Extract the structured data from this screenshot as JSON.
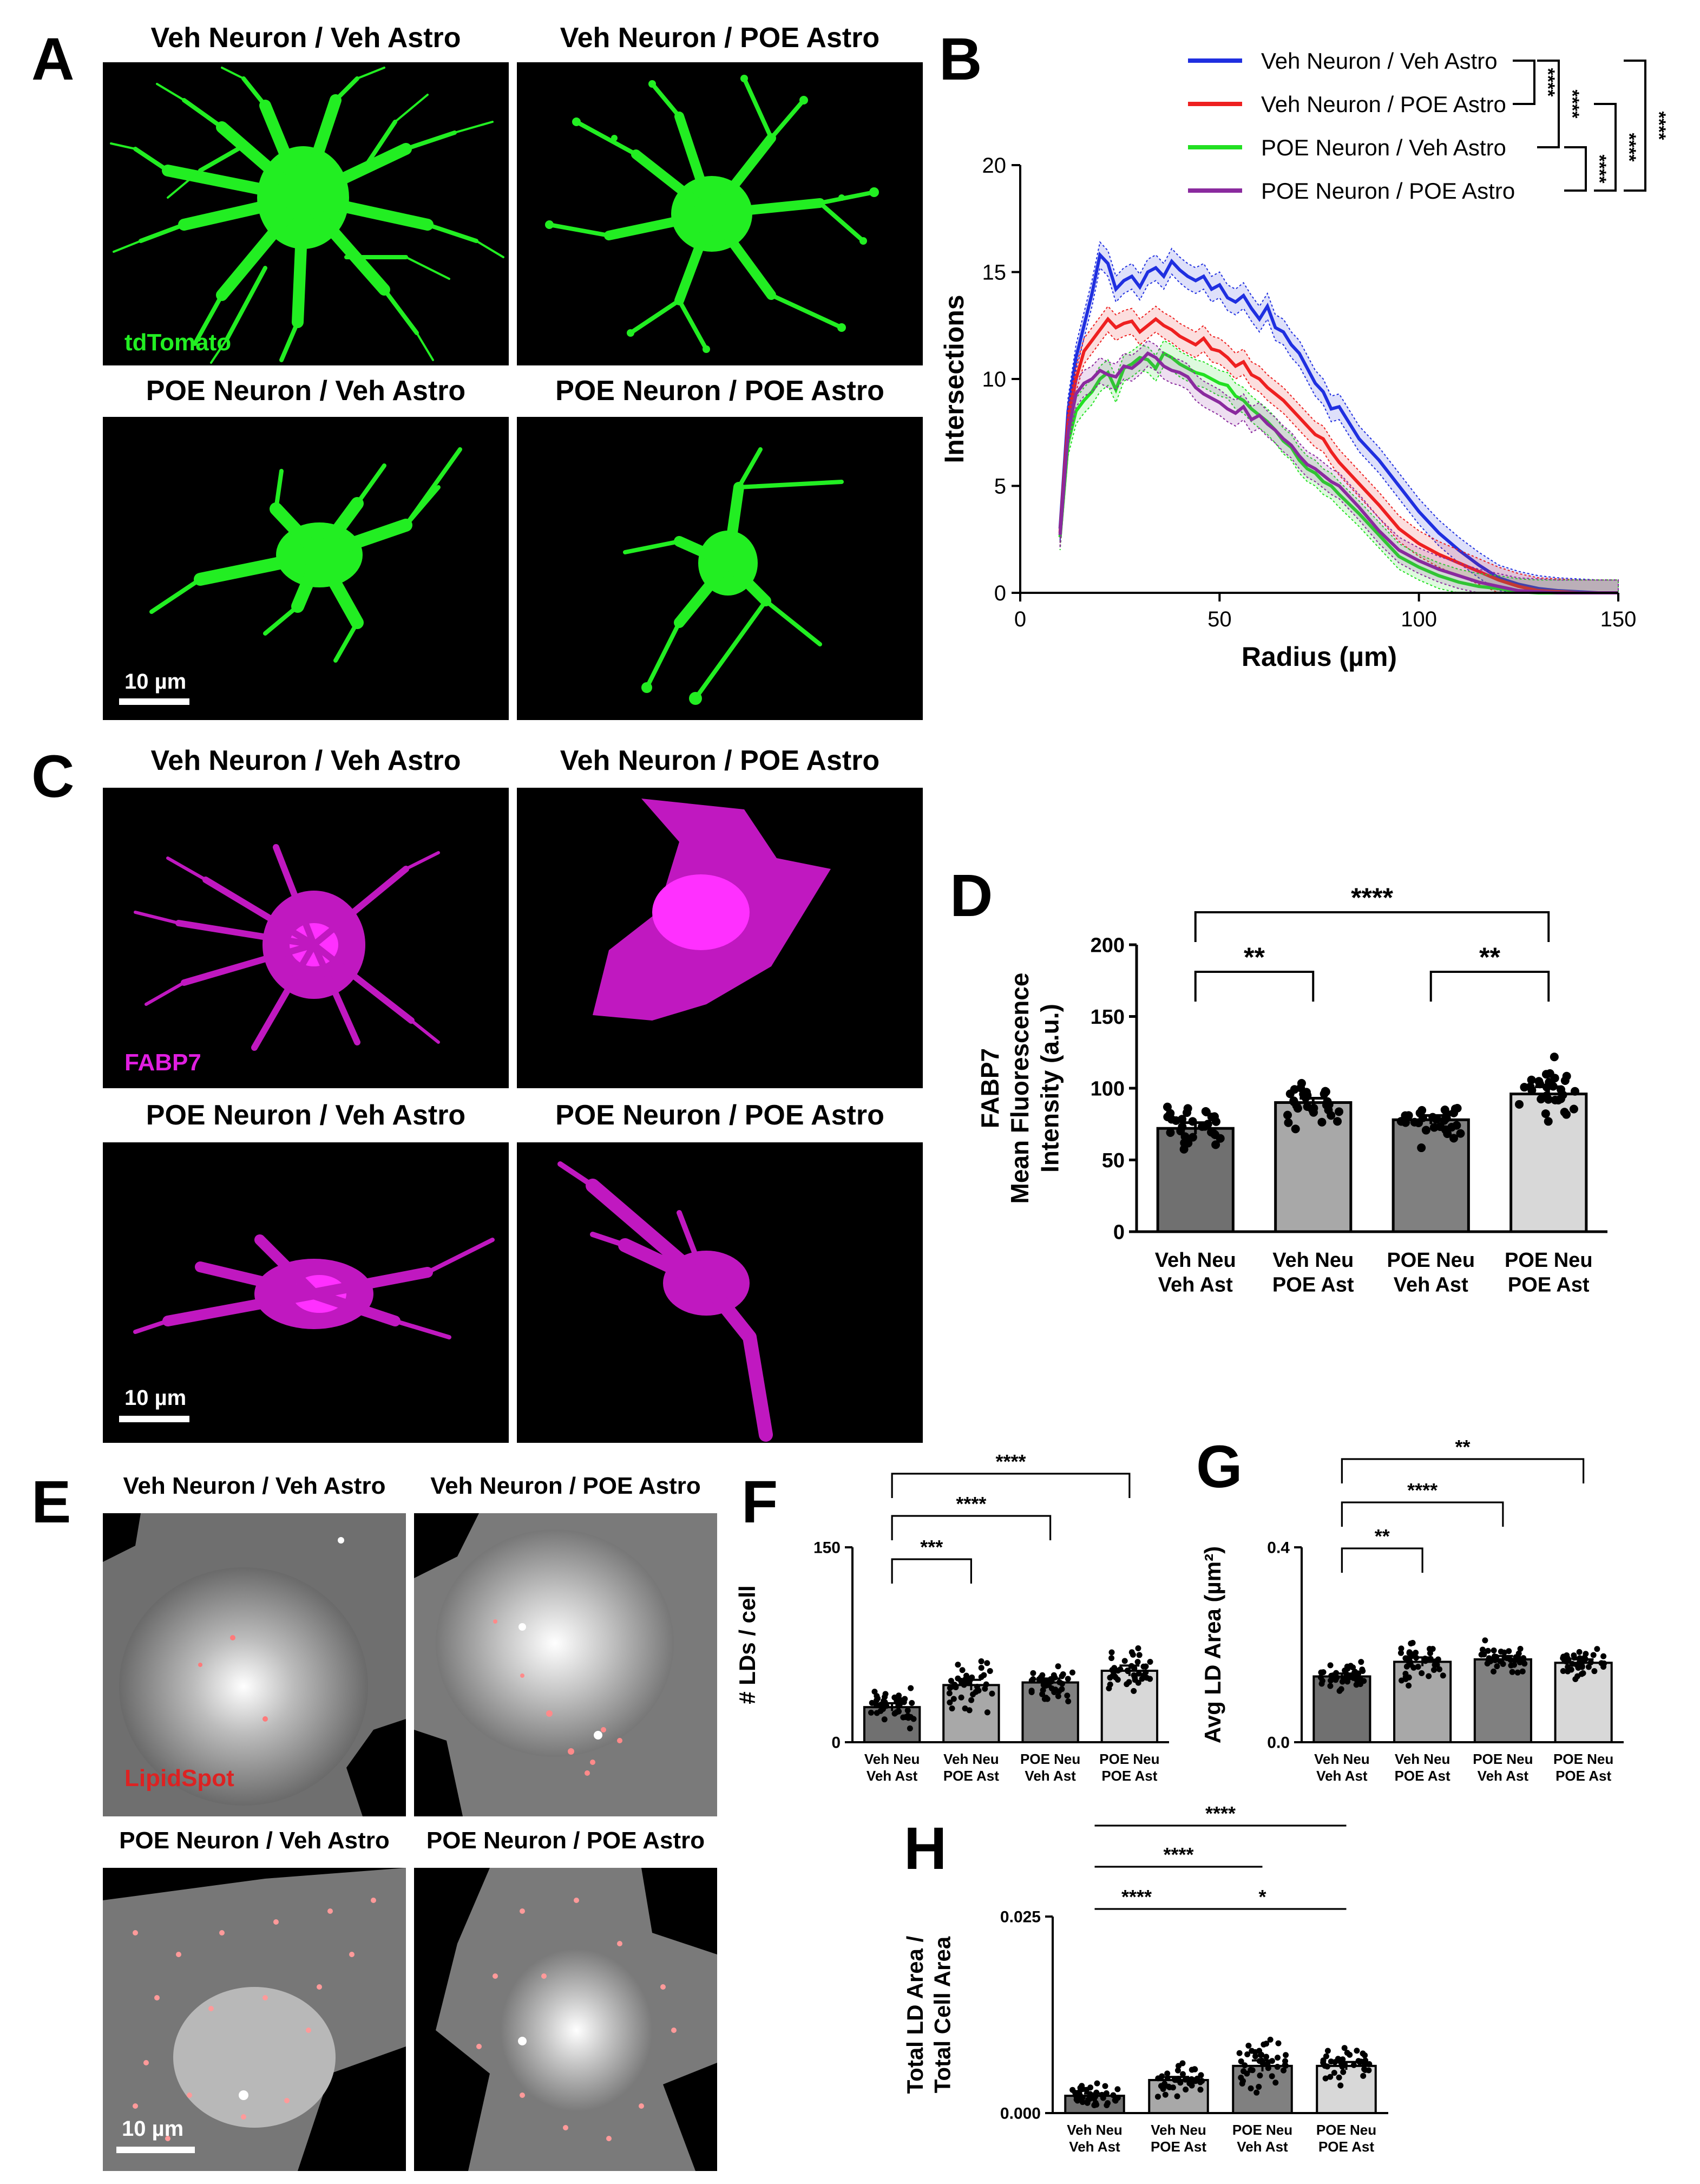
{
  "panels": {
    "A": {
      "label": "A",
      "titles": [
        "Veh Neuron / Veh Astro",
        "Veh Neuron / POE Astro",
        "POE Neuron / Veh Astro",
        "POE Neuron / POE Astro"
      ],
      "stain": "tdTomato",
      "stain_color": "#22ee22",
      "scale": "10 µm"
    },
    "C": {
      "label": "C",
      "titles": [
        "Veh Neuron / Veh Astro",
        "Veh Neuron / POE Astro",
        "POE Neuron / Veh Astro",
        "POE Neuron / POE Astro"
      ],
      "stain": "FABP7",
      "stain_color": "#e01ee0",
      "scale": "10 µm"
    },
    "E": {
      "label": "E",
      "titles": [
        "Veh Neuron / Veh Astro",
        "Veh Neuron / POE Astro",
        "POE Neuron / Veh Astro",
        "POE Neuron / POE Astro"
      ],
      "stain": "LipidSpot",
      "stain_color": "#dd2222",
      "scale": "10 µm"
    },
    "B": {
      "label": "B"
    },
    "D": {
      "label": "D"
    },
    "F": {
      "label": "F"
    },
    "G": {
      "label": "G"
    },
    "H": {
      "label": "H"
    }
  },
  "chart_data": [
    {
      "id": "B",
      "type": "line",
      "xlabel": "Radius (µm)",
      "ylabel": "Intersections",
      "xlim": [
        0,
        150
      ],
      "ylim": [
        0,
        20
      ],
      "xticks": [
        0,
        50,
        100,
        150
      ],
      "yticks": [
        0,
        5,
        10,
        15,
        20
      ],
      "legend_position": "top-right",
      "x": [
        10,
        12,
        14,
        16,
        18,
        20,
        22,
        24,
        26,
        28,
        30,
        32,
        34,
        36,
        38,
        40,
        42,
        44,
        46,
        48,
        50,
        52,
        54,
        56,
        58,
        60,
        62,
        64,
        66,
        68,
        70,
        72,
        74,
        76,
        78,
        80,
        85,
        90,
        95,
        100,
        105,
        110,
        115,
        120,
        125,
        130,
        135,
        140,
        145,
        150
      ],
      "series": [
        {
          "name": "Veh Neuron / Veh Astro",
          "color": "#1f2fe0",
          "values": [
            3,
            8.5,
            11,
            12.5,
            14,
            15.8,
            15.4,
            14.2,
            14.6,
            14.8,
            14.3,
            15,
            15.2,
            14.8,
            15.5,
            15.1,
            14.8,
            14.6,
            14.8,
            14.2,
            14.4,
            13.8,
            13.6,
            13.9,
            13.3,
            12.8,
            13.4,
            12.4,
            12.2,
            11.6,
            11.2,
            10.5,
            9.8,
            9.4,
            8.6,
            8.7,
            7.2,
            6.2,
            5,
            3.8,
            2.8,
            2,
            1.3,
            0.7,
            0.4,
            0.2,
            0.1,
            0.05,
            0,
            0
          ]
        },
        {
          "name": "Veh Neuron / POE Astro",
          "color": "#ee2020",
          "values": [
            2.8,
            8,
            10,
            11.3,
            11.8,
            12.3,
            12.8,
            12.4,
            12.6,
            12.7,
            12.2,
            12.5,
            12.8,
            12.5,
            12.3,
            12,
            11.8,
            11.6,
            11.9,
            11.4,
            11.3,
            11,
            10.6,
            10.8,
            10.2,
            10,
            9.6,
            9.3,
            9,
            8.6,
            8.2,
            7.8,
            7.4,
            7.2,
            6.6,
            6.1,
            5.1,
            4.1,
            3,
            2.3,
            1.8,
            1.4,
            1,
            0.6,
            0.3,
            0.1,
            0.05,
            0,
            0,
            0
          ]
        },
        {
          "name": "POE Neuron / Veh Astro",
          "color": "#22e022",
          "values": [
            2.6,
            7,
            8.5,
            9,
            9.4,
            10,
            10.3,
            9.5,
            10.5,
            10.7,
            11,
            10.9,
            10.5,
            11.2,
            11,
            10.7,
            10.5,
            10.3,
            10.2,
            10,
            9.8,
            9.7,
            9.2,
            9,
            8.6,
            8.3,
            8,
            7.6,
            7.1,
            6.8,
            6.2,
            5.8,
            5.6,
            5.2,
            5,
            4.6,
            3.7,
            2.7,
            1.7,
            1.2,
            0.8,
            0.5,
            0.3,
            0.2,
            0.05,
            0,
            0,
            0,
            0,
            0
          ]
        },
        {
          "name": "POE Neuron / POE Astro",
          "color": "#8a2a9e",
          "values": [
            2.7,
            7.5,
            9.3,
            9.8,
            10,
            10.4,
            10.2,
            10.1,
            10.6,
            10.5,
            10.8,
            11.2,
            11,
            10.6,
            10.4,
            10.3,
            10.1,
            9.6,
            9.3,
            9.1,
            8.9,
            8.6,
            8.4,
            8.7,
            8.1,
            8.3,
            7.9,
            7.6,
            7.2,
            6.9,
            6.4,
            6,
            5.8,
            5.5,
            5.2,
            5,
            4,
            2.9,
            2,
            1.5,
            1.1,
            0.8,
            0.5,
            0.3,
            0.1,
            0.05,
            0,
            0,
            0,
            0
          ]
        }
      ],
      "significance": [
        "****",
        "****",
        "****",
        "****",
        "****"
      ]
    },
    {
      "id": "D",
      "type": "bar",
      "ylabel": [
        "FABP7",
        "Mean Fluorescence",
        "Intensity (a.u.)"
      ],
      "categories": [
        [
          "Veh Neu",
          "Veh Ast"
        ],
        [
          "Veh Neu",
          "POE Ast"
        ],
        [
          "POE Neu",
          "Veh Ast"
        ],
        [
          "POE Neu",
          "POE Ast"
        ]
      ],
      "values": [
        72,
        90,
        78,
        96
      ],
      "sem": [
        4,
        3,
        3,
        5
      ],
      "bar_colors": [
        "#707070",
        "#a8a8a8",
        "#808080",
        "#d8d8d8"
      ],
      "ylim": [
        0,
        200
      ],
      "yticks": [
        0,
        50,
        100,
        150,
        200
      ],
      "comparisons": [
        {
          "from": 0,
          "to": 1,
          "label": "**"
        },
        {
          "from": 2,
          "to": 3,
          "label": "**"
        },
        {
          "from": 0,
          "to": 3,
          "label": "****"
        }
      ]
    },
    {
      "id": "F",
      "type": "bar",
      "ylabel": "# LDs / cell",
      "categories": [
        [
          "Veh Neu",
          "Veh Ast"
        ],
        [
          "Veh Neu",
          "POE Ast"
        ],
        [
          "POE Neu",
          "Veh Ast"
        ],
        [
          "POE Neu",
          "POE Ast"
        ]
      ],
      "values": [
        27,
        44,
        46,
        55
      ],
      "sem": [
        3,
        4,
        3,
        4
      ],
      "bar_colors": [
        "#707070",
        "#a8a8a8",
        "#808080",
        "#d8d8d8"
      ],
      "ylim": [
        0,
        150
      ],
      "yticks": [
        0,
        150
      ],
      "comparisons": [
        {
          "from": 0,
          "to": 1,
          "label": "***"
        },
        {
          "from": 0,
          "to": 2,
          "label": "****"
        },
        {
          "from": 0,
          "to": 3,
          "label": "****"
        }
      ]
    },
    {
      "id": "G",
      "type": "bar",
      "ylabel": "Avg LD Area (µm²)",
      "categories": [
        [
          "Veh Neu",
          "Veh Ast"
        ],
        [
          "Veh Neu",
          "POE Ast"
        ],
        [
          "POE Neu",
          "Veh Ast"
        ],
        [
          "POE Neu",
          "POE Ast"
        ]
      ],
      "values": [
        0.135,
        0.165,
        0.17,
        0.163
      ],
      "sem": [
        0.006,
        0.009,
        0.007,
        0.007
      ],
      "bar_colors": [
        "#707070",
        "#a8a8a8",
        "#808080",
        "#d8d8d8"
      ],
      "ylim": [
        0,
        0.4
      ],
      "yticks": [
        0.0,
        0.4
      ],
      "comparisons": [
        {
          "from": 0,
          "to": 1,
          "label": "**"
        },
        {
          "from": 0,
          "to": 2,
          "label": "****"
        },
        {
          "from": 0,
          "to": 3,
          "label": "**"
        }
      ]
    },
    {
      "id": "H",
      "type": "bar",
      "ylabel": [
        "Total LD Area /",
        "Total Cell Area"
      ],
      "categories": [
        [
          "Veh Neu",
          "Veh Ast"
        ],
        [
          "Veh Neu",
          "POE Ast"
        ],
        [
          "POE Neu",
          "Veh Ast"
        ],
        [
          "POE Neu",
          "POE Ast"
        ]
      ],
      "values": [
        0.0022,
        0.0042,
        0.006,
        0.006
      ],
      "sem": [
        0.0003,
        0.0004,
        0.0007,
        0.0005
      ],
      "bar_colors": [
        "#707070",
        "#a8a8a8",
        "#808080",
        "#d8d8d8"
      ],
      "ylim": [
        0,
        0.025
      ],
      "yticks": [
        0.0,
        0.025
      ],
      "ytick_labels": [
        "0.000",
        "0.025"
      ],
      "comparisons": [
        {
          "from": 0,
          "to": 1,
          "label": "****"
        },
        {
          "from": 1,
          "to": 3,
          "label": "*"
        },
        {
          "from": 0,
          "to": 2,
          "label": "****"
        },
        {
          "from": 0,
          "to": 3,
          "label": "****"
        }
      ]
    }
  ]
}
